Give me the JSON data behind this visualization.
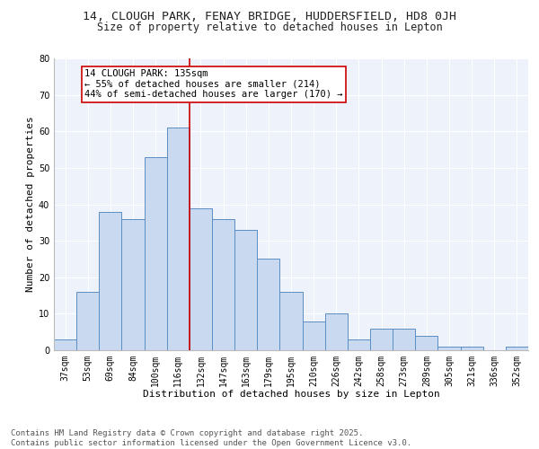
{
  "title1": "14, CLOUGH PARK, FENAY BRIDGE, HUDDERSFIELD, HD8 0JH",
  "title2": "Size of property relative to detached houses in Lepton",
  "xlabel": "Distribution of detached houses by size in Lepton",
  "ylabel": "Number of detached properties",
  "categories": [
    "37sqm",
    "53sqm",
    "69sqm",
    "84sqm",
    "100sqm",
    "116sqm",
    "132sqm",
    "147sqm",
    "163sqm",
    "179sqm",
    "195sqm",
    "210sqm",
    "226sqm",
    "242sqm",
    "258sqm",
    "273sqm",
    "289sqm",
    "305sqm",
    "321sqm",
    "336sqm",
    "352sqm"
  ],
  "values": [
    3,
    16,
    38,
    36,
    53,
    61,
    39,
    36,
    33,
    25,
    16,
    8,
    10,
    3,
    6,
    6,
    4,
    1,
    1,
    0,
    1
  ],
  "highlight_index": 6,
  "bar_color": "#c9d9f0",
  "bar_edge_color": "#5b8ec4",
  "highlight_line_color": "#cc0000",
  "annotation_box_edge": "#cc0000",
  "annotation_text": "14 CLOUGH PARK: 135sqm\n← 55% of detached houses are smaller (214)\n44% of semi-detached houses are larger (170) →",
  "ylim": [
    0,
    80
  ],
  "yticks": [
    0,
    10,
    20,
    30,
    40,
    50,
    60,
    70,
    80
  ],
  "footnote": "Contains HM Land Registry data © Crown copyright and database right 2025.\nContains public sector information licensed under the Open Government Licence v3.0.",
  "bg_color": "#eef2fa",
  "title1_fontsize": 9.5,
  "title2_fontsize": 8.5,
  "annotation_fontsize": 7.5,
  "tick_fontsize": 7,
  "label_fontsize": 8,
  "footnote_fontsize": 6.5
}
